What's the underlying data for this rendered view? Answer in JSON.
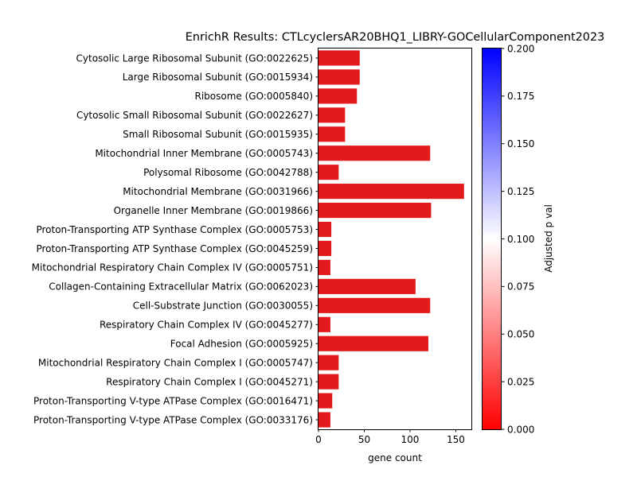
{
  "chart_data": {
    "type": "bar",
    "orientation": "horizontal",
    "title": "EnrichR Results: CTLcyclersAR20BHQ1_LIBRY-GOCellularComponent2023",
    "xlabel": "gene count",
    "ylabel": "",
    "xlim": [
      0,
      167
    ],
    "xticks": [
      0,
      50,
      100,
      150
    ],
    "grid": false,
    "categories": [
      "Cytosolic Large Ribosomal Subunit (GO:0022625)",
      "Large Ribosomal Subunit (GO:0015934)",
      "Ribosome (GO:0005840)",
      "Cytosolic Small Ribosomal Subunit (GO:0022627)",
      "Small Ribosomal Subunit (GO:0015935)",
      "Mitochondrial Inner Membrane (GO:0005743)",
      "Polysomal Ribosome (GO:0042788)",
      "Mitochondrial Membrane (GO:0031966)",
      "Organelle Inner Membrane (GO:0019866)",
      "Proton-Transporting ATP Synthase Complex (GO:0005753)",
      "Proton-Transporting ATP Synthase Complex (GO:0045259)",
      "Mitochondrial Respiratory Chain Complex IV (GO:0005751)",
      "Collagen-Containing Extracellular Matrix (GO:0062023)",
      "Cell-Substrate Junction (GO:0030055)",
      "Respiratory Chain Complex IV (GO:0045277)",
      "Focal Adhesion (GO:0005925)",
      "Mitochondrial Respiratory Chain Complex I (GO:0005747)",
      "Respiratory Chain Complex I (GO:0045271)",
      "Proton-Transporting V-type ATPase Complex (GO:0016471)",
      "Proton-Transporting V-type ATPase Complex (GO:0033176)"
    ],
    "values": [
      45,
      45,
      42,
      29,
      29,
      122,
      22,
      159,
      123,
      14,
      14,
      13,
      106,
      122,
      13,
      120,
      22,
      22,
      15,
      13
    ],
    "adjusted_p_values": [
      0,
      0,
      0,
      0,
      0,
      0,
      0,
      0,
      0,
      0,
      0,
      0,
      0,
      0,
      0,
      0,
      0,
      0,
      0,
      0
    ],
    "bar_color": "#e31a1c",
    "colorbar": {
      "label": "Adjusted p val",
      "range": [
        0.0,
        0.2
      ],
      "ticks": [
        "0.000",
        "0.025",
        "0.050",
        "0.075",
        "0.100",
        "0.125",
        "0.150",
        "0.175",
        "0.200"
      ],
      "colormap": [
        "#ff0000",
        "#ffffff",
        "#0000ff"
      ]
    }
  }
}
